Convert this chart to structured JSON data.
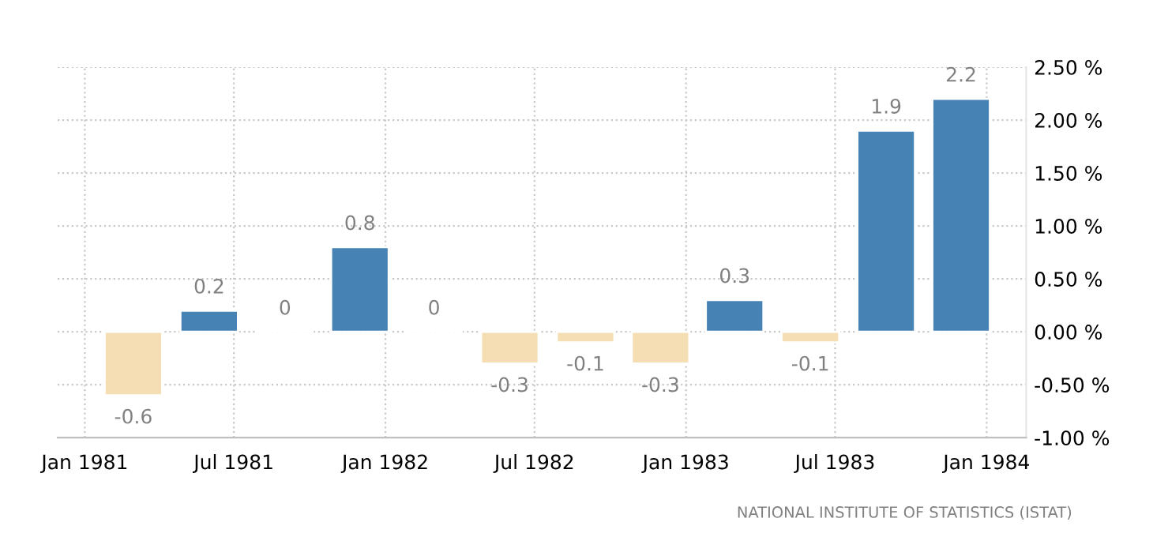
{
  "chart_data": {
    "type": "bar",
    "x": [
      "1981-03-01",
      "1981-06-01",
      "1981-09-01",
      "1981-12-01",
      "1982-03-01",
      "1982-06-01",
      "1982-09-01",
      "1982-12-01",
      "1983-03-01",
      "1983-06-01",
      "1983-09-01",
      "1983-12-01"
    ],
    "values": [
      -0.6,
      0.2,
      0,
      0.8,
      0,
      -0.3,
      -0.1,
      -0.3,
      0.3,
      -0.1,
      1.9,
      2.2
    ],
    "colors": [
      "#f5deb3",
      "#4682b4",
      null,
      "#4682b4",
      null,
      "#f5deb3",
      "#f5deb3",
      "#f5deb3",
      "#4682b4",
      "#f5deb3",
      "#4682b4",
      "#4682b4"
    ],
    "data_labels": true,
    "xlim": [
      "1980-11-29",
      "1984-02-18"
    ],
    "xticks": [
      {
        "value": "1981-01-01",
        "label": "Jan 1981"
      },
      {
        "value": "1981-07-01",
        "label": "Jul 1981"
      },
      {
        "value": "1982-01-01",
        "label": "Jan 1982"
      },
      {
        "value": "1982-07-01",
        "label": "Jul 1982"
      },
      {
        "value": "1983-01-01",
        "label": "Jan 1983"
      },
      {
        "value": "1983-07-01",
        "label": "Jul 1983"
      },
      {
        "value": "1984-01-01",
        "label": "Jan 1984"
      }
    ],
    "ylim": [
      -1,
      2.5
    ],
    "yticks": [
      {
        "value": -1,
        "label": "-1.00 %"
      },
      {
        "value": -0.5,
        "label": "-0.50 %"
      },
      {
        "value": 0,
        "label": "0.00 %"
      },
      {
        "value": 0.5,
        "label": "0.50 %"
      },
      {
        "value": 1,
        "label": "1.00 %"
      },
      {
        "value": 1.5,
        "label": "1.50 %"
      },
      {
        "value": 2,
        "label": "2.00 %"
      },
      {
        "value": 2.5,
        "label": "2.50 %"
      }
    ],
    "grid": true,
    "annotations": [
      "NATIONAL INSTITUTE OF STATISTICS (ISTAT)"
    ]
  }
}
